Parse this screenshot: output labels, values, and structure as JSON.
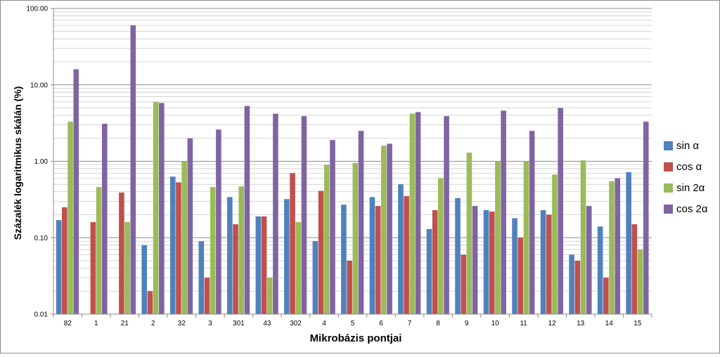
{
  "chart_data": {
    "type": "bar",
    "ylabel": "Százalék logaritmikus skálán (%)",
    "xlabel": "Mikrobázis pontjai",
    "yscale": "log",
    "ylim": [
      0.01,
      100
    ],
    "y_ticks": [
      "0.01",
      "0.10",
      "1.00",
      "10.00",
      "100.00"
    ],
    "grid": true,
    "legend_position": "right",
    "categories": [
      "82",
      "1",
      "21",
      "2",
      "32",
      "3",
      "301",
      "43",
      "302",
      "4",
      "5",
      "6",
      "7",
      "8",
      "9",
      "10",
      "11",
      "12",
      "13",
      "14",
      "15"
    ],
    "series": [
      {
        "name": "sin α",
        "color": "#4F81BD",
        "values": [
          0.17,
          null,
          null,
          0.08,
          0.63,
          0.09,
          0.34,
          0.19,
          0.32,
          0.09,
          0.27,
          0.34,
          0.5,
          0.13,
          0.33,
          0.23,
          0.18,
          0.23,
          0.06,
          0.14,
          0.72
        ]
      },
      {
        "name": "cos α",
        "color": "#C0504D",
        "values": [
          0.25,
          0.16,
          0.39,
          0.02,
          0.53,
          0.03,
          0.15,
          0.19,
          0.7,
          0.41,
          0.05,
          0.26,
          0.35,
          0.23,
          0.06,
          0.22,
          0.1,
          0.2,
          0.05,
          0.03,
          0.15
        ]
      },
      {
        "name": "sin 2α",
        "color": "#9BBB59",
        "values": [
          3.3,
          0.46,
          0.16,
          6.0,
          1.0,
          0.46,
          0.47,
          0.03,
          0.16,
          0.9,
          0.95,
          1.6,
          4.2,
          0.6,
          1.3,
          1.0,
          1.0,
          0.67,
          1.03,
          0.55,
          0.07
        ]
      },
      {
        "name": "cos 2α",
        "color": "#8064A2",
        "values": [
          16.0,
          3.1,
          60.0,
          5.8,
          2.0,
          2.6,
          5.3,
          4.2,
          3.9,
          1.9,
          2.5,
          1.7,
          4.4,
          3.9,
          0.26,
          4.6,
          2.5,
          5.0,
          0.26,
          0.6,
          3.3
        ]
      }
    ]
  }
}
